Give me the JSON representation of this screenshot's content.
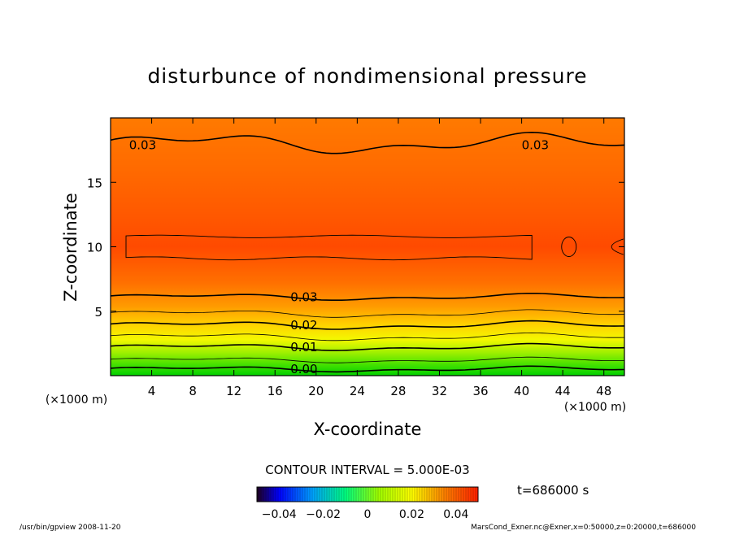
{
  "chart_data": {
    "type": "contour",
    "title": "disturbunce of nondimensional pressure",
    "xlabel": "X-coordinate",
    "ylabel": "Z-coordinate",
    "x_unit": "(×1000 m)",
    "y_unit": "(×1000 m)",
    "xlim": [
      0,
      50
    ],
    "ylim": [
      0,
      20
    ],
    "x_ticks": [
      4,
      8,
      12,
      16,
      20,
      24,
      28,
      32,
      36,
      40,
      44,
      48
    ],
    "y_ticks": [
      5,
      10,
      15
    ],
    "contour_interval_text": "CONTOUR INTERVAL = 5.000E-03",
    "time_label": "t=686000 s",
    "colorbar_ticks": [
      "−0.04",
      "−0.02",
      "0",
      "0.02",
      "0.04"
    ],
    "colorbar_range": [
      -0.05,
      0.05
    ],
    "contour_labels": [
      {
        "text": "0.03",
        "x": 1.8,
        "z": 17.9
      },
      {
        "text": "0.03",
        "x": 40.0,
        "z": 17.9
      },
      {
        "text": "0.03",
        "x": 17.5,
        "z": 6.1
      },
      {
        "text": "0.02",
        "x": 17.5,
        "z": 3.9
      },
      {
        "text": "0.01",
        "x": 17.5,
        "z": 2.2
      },
      {
        "text": "0.00",
        "x": 17.5,
        "z": 0.5
      }
    ],
    "colors": {
      "low": "#00d800",
      "mid": "#ffff00",
      "high": "#ff7a00",
      "peak": "#ff3c00"
    }
  },
  "footer": {
    "left": "/usr/bin/gpview   2008-11-20",
    "right": "MarsCond_Exner.nc@Exner,x=0:50000,z=0:20000,t=686000"
  }
}
